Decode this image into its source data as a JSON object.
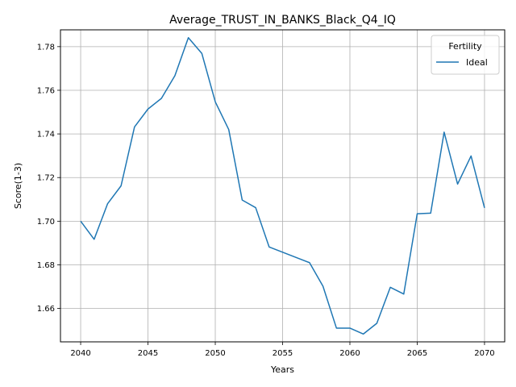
{
  "chart_data": {
    "type": "line",
    "title": "Average_TRUST_IN_BANKS_Black_Q4_IQ",
    "xlabel": "Years",
    "ylabel": "Score(1-3)",
    "xlim": [
      2038.5,
      2071.5
    ],
    "ylim": [
      1.6447,
      1.7877
    ],
    "xticks": [
      2040,
      2045,
      2050,
      2055,
      2060,
      2065,
      2070
    ],
    "yticks": [
      1.66,
      1.68,
      1.7,
      1.72,
      1.74,
      1.76,
      1.78
    ],
    "xtick_labels": [
      "2040",
      "2045",
      "2050",
      "2055",
      "2060",
      "2065",
      "2070"
    ],
    "ytick_labels": [
      "1.66",
      "1.68",
      "1.70",
      "1.72",
      "1.74",
      "1.76",
      "1.78"
    ],
    "grid": true,
    "legend": {
      "title": "Fertility",
      "position": "top-right"
    },
    "series": [
      {
        "name": "Ideal",
        "color": "#1f77b4",
        "x": [
          2040,
          2041,
          2042,
          2043,
          2044,
          2045,
          2046,
          2047,
          2048,
          2049,
          2050,
          2051,
          2052,
          2053,
          2054,
          2055,
          2056,
          2057,
          2058,
          2059,
          2060,
          2061,
          2062,
          2063,
          2064,
          2065,
          2066,
          2067,
          2068,
          2069,
          2070
        ],
        "y": [
          1.7,
          1.6917,
          1.708,
          1.7162,
          1.7432,
          1.7514,
          1.7563,
          1.7667,
          1.7841,
          1.7769,
          1.7547,
          1.742,
          1.7097,
          1.7062,
          1.6882,
          1.6858,
          1.6834,
          1.681,
          1.6702,
          1.651,
          1.651,
          1.6483,
          1.6532,
          1.6697,
          1.6666,
          1.7034,
          1.7037,
          1.7408,
          1.717,
          1.7299,
          1.7061
        ]
      }
    ]
  }
}
